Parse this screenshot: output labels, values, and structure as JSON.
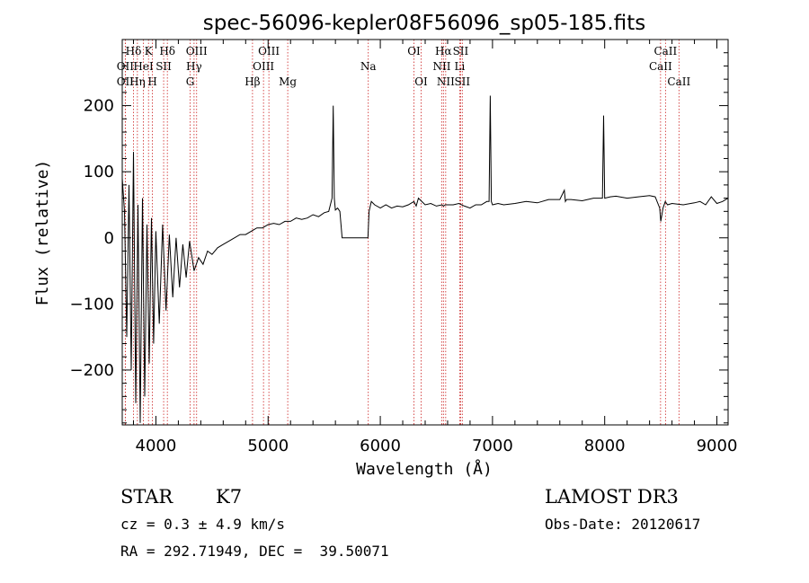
{
  "chart_data": {
    "type": "line",
    "title": "spec-56096-kepler08F56096_sp05-185.fits",
    "xlabel": "Wavelength (Å)",
    "ylabel": "Flux (relative)",
    "xlim": [
      3700,
      9100
    ],
    "ylim": [
      -283,
      300
    ],
    "x_ticks": [
      4000,
      5000,
      6000,
      7000,
      8000,
      9000
    ],
    "y_ticks": [
      -200,
      -100,
      0,
      100,
      200
    ],
    "grid": false,
    "series": [
      {
        "name": "spectrum",
        "x": [
          3700,
          3720,
          3740,
          3760,
          3780,
          3800,
          3820,
          3840,
          3860,
          3880,
          3900,
          3920,
          3940,
          3960,
          3980,
          4000,
          4030,
          4060,
          4090,
          4120,
          4150,
          4180,
          4210,
          4240,
          4270,
          4300,
          4340,
          4380,
          4420,
          4460,
          4500,
          4550,
          4600,
          4650,
          4700,
          4750,
          4800,
          4850,
          4900,
          4950,
          5000,
          5050,
          5100,
          5150,
          5200,
          5250,
          5300,
          5350,
          5400,
          5450,
          5500,
          5540,
          5570,
          5580,
          5590,
          5600,
          5620,
          5640,
          5660,
          5700,
          5750,
          5800,
          5850,
          5890,
          5900,
          5920,
          5950,
          6000,
          6050,
          6100,
          6150,
          6200,
          6250,
          6300,
          6320,
          6340,
          6400,
          6450,
          6500,
          6550,
          6563,
          6580,
          6650,
          6700,
          6750,
          6800,
          6850,
          6900,
          6950,
          6970,
          6980,
          6990,
          7000,
          7050,
          7100,
          7200,
          7300,
          7400,
          7500,
          7600,
          7640,
          7650,
          7660,
          7700,
          7800,
          7900,
          7980,
          7990,
          8000,
          8050,
          8100,
          8200,
          8300,
          8400,
          8450,
          8490,
          8500,
          8520,
          8540,
          8560,
          8600,
          8700,
          8800,
          8850,
          8900,
          8950,
          9000,
          9050,
          9100
        ],
        "y": [
          90,
          40,
          -150,
          80,
          -200,
          130,
          -250,
          50,
          -280,
          60,
          -240,
          20,
          -190,
          30,
          -160,
          10,
          -130,
          20,
          -110,
          5,
          -90,
          0,
          -75,
          -10,
          -60,
          -5,
          -50,
          -30,
          -40,
          -20,
          -25,
          -15,
          -10,
          -5,
          0,
          5,
          5,
          10,
          15,
          15,
          20,
          22,
          20,
          25,
          25,
          30,
          28,
          30,
          35,
          32,
          38,
          40,
          60,
          200,
          60,
          42,
          45,
          40,
          0,
          0,
          0,
          0,
          0,
          0,
          40,
          55,
          50,
          45,
          50,
          45,
          48,
          47,
          50,
          55,
          48,
          60,
          50,
          52,
          48,
          50,
          48,
          50,
          50,
          52,
          48,
          45,
          50,
          50,
          55,
          55,
          215,
          55,
          50,
          52,
          50,
          52,
          55,
          53,
          58,
          58,
          72,
          55,
          58,
          58,
          56,
          60,
          60,
          185,
          60,
          62,
          63,
          60,
          62,
          64,
          62,
          45,
          25,
          45,
          55,
          50,
          52,
          50,
          53,
          55,
          50,
          62,
          52,
          55,
          60
        ]
      }
    ],
    "line_markers": [
      {
        "label": "Hδ",
        "x": 3800,
        "row": 1
      },
      {
        "label": "K",
        "x": 3934,
        "row": 1
      },
      {
        "label": "Hδ",
        "x": 4102,
        "row": 1
      },
      {
        "label": "OIII",
        "x": 4363,
        "row": 1
      },
      {
        "label": "OIII",
        "x": 5007,
        "row": 1
      },
      {
        "label": "OI",
        "x": 6300,
        "row": 1
      },
      {
        "label": "Hα",
        "x": 6563,
        "row": 1
      },
      {
        "label": "SII",
        "x": 6716,
        "row": 1
      },
      {
        "label": "CaII",
        "x": 8542,
        "row": 1
      },
      {
        "label": "OII",
        "x": 3727,
        "row": 2
      },
      {
        "label": "HeI",
        "x": 3889,
        "row": 2
      },
      {
        "label": "SII",
        "x": 4069,
        "row": 2
      },
      {
        "label": "Hγ",
        "x": 4340,
        "row": 2
      },
      {
        "label": "OIII",
        "x": 4959,
        "row": 2
      },
      {
        "label": "Na",
        "x": 5893,
        "row": 2
      },
      {
        "label": "NII",
        "x": 6548,
        "row": 2
      },
      {
        "label": "Li",
        "x": 6708,
        "row": 2
      },
      {
        "label": "CaII",
        "x": 8498,
        "row": 2
      },
      {
        "label": "OII",
        "x": 3727,
        "row": 3
      },
      {
        "label": "Hη",
        "x": 3835,
        "row": 3
      },
      {
        "label": "H",
        "x": 3969,
        "row": 3
      },
      {
        "label": "G",
        "x": 4305,
        "row": 3
      },
      {
        "label": "Hβ",
        "x": 4861,
        "row": 3
      },
      {
        "label": "Mg",
        "x": 5175,
        "row": 3
      },
      {
        "label": "OI",
        "x": 6364,
        "row": 3
      },
      {
        "label": "NII",
        "x": 6583,
        "row": 3
      },
      {
        "label": "SII",
        "x": 6731,
        "row": 3
      },
      {
        "label": "CaII",
        "x": 8662,
        "row": 3
      }
    ]
  },
  "footer": {
    "class_label": "STAR",
    "subclass_label": "K7",
    "survey": "LAMOST DR3",
    "cz": "cz = 0.3 ± 4.9 km/s",
    "obs_date": "Obs-Date: 20120617",
    "coords": "RA = 292.71949, DEC =  39.50071"
  },
  "colors": {
    "line": "#000000",
    "marker": "#cc2222",
    "frame": "#000000"
  }
}
